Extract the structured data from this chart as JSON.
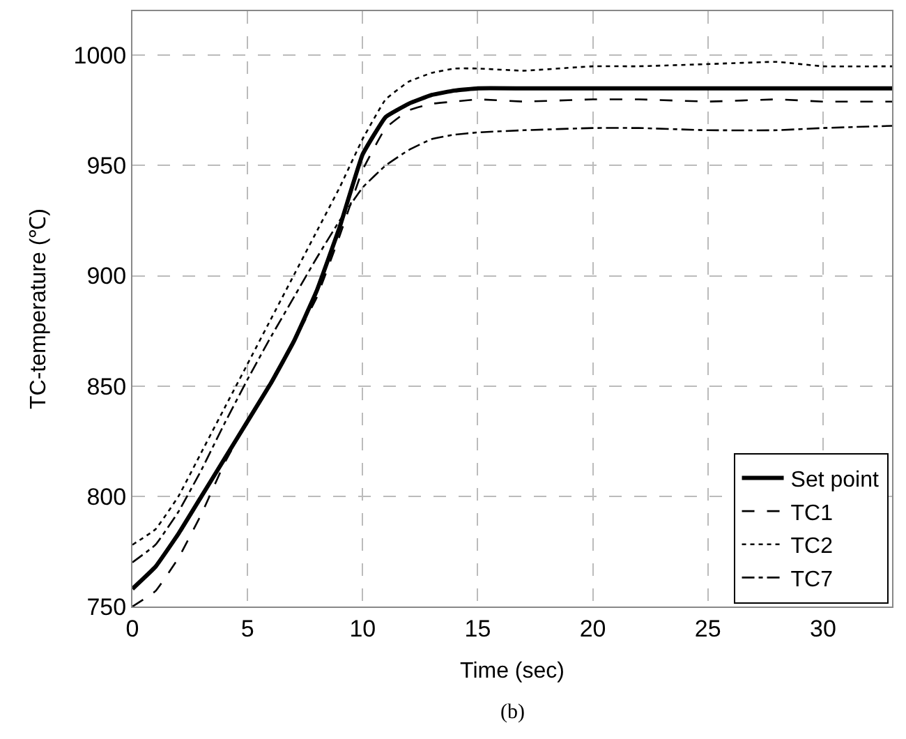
{
  "chart_data": {
    "type": "line",
    "xlabel": "Time (sec)",
    "ylabel": "TC-temperature (℃)",
    "annotations": [
      "(b)"
    ],
    "xlim": [
      0,
      33
    ],
    "ylim": [
      750,
      1020
    ],
    "xticks": [
      0,
      5,
      10,
      15,
      20,
      25,
      30
    ],
    "yticks": [
      750,
      800,
      850,
      900,
      950,
      1000
    ],
    "grid": true,
    "legend": "bottom right",
    "marker": "none",
    "x": [
      0,
      1,
      2,
      3,
      4,
      5,
      6,
      7,
      8,
      9,
      10,
      11,
      12,
      13,
      14,
      15,
      17,
      20,
      22,
      25,
      28,
      30,
      33
    ],
    "series": [
      {
        "name": "Set point",
        "color": "#000000",
        "line_style": "solid",
        "values": [
          758,
          768,
          783,
          800,
          817,
          834,
          851,
          870,
          893,
          922,
          955,
          972,
          978,
          982,
          984,
          985,
          985,
          985,
          985,
          985,
          985,
          985,
          985
        ]
      },
      {
        "name": "TC1",
        "color": "#000000",
        "line_style": "dashed",
        "values": [
          750,
          757,
          772,
          792,
          815,
          834,
          852,
          870,
          890,
          918,
          948,
          967,
          975,
          978,
          979,
          980,
          979,
          980,
          980,
          979,
          980,
          979,
          979
        ]
      },
      {
        "name": "TC2",
        "color": "#000000",
        "line_style": "dotted",
        "values": [
          778,
          785,
          800,
          820,
          840,
          860,
          880,
          900,
          920,
          940,
          962,
          980,
          988,
          992,
          994,
          994,
          993,
          995,
          995,
          996,
          997,
          995,
          995
        ]
      },
      {
        "name": "TC7",
        "color": "#000000",
        "line_style": "dashdot",
        "values": [
          770,
          778,
          793,
          812,
          833,
          853,
          872,
          890,
          908,
          925,
          940,
          950,
          957,
          962,
          964,
          965,
          966,
          967,
          967,
          966,
          966,
          967,
          968
        ]
      }
    ]
  }
}
